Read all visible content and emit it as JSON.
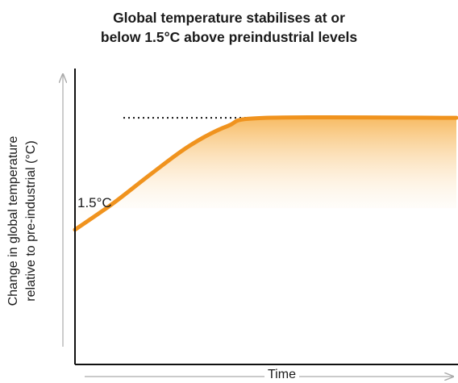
{
  "chart_data": {
    "type": "area",
    "title": [
      "Global temperature stabilises at or",
      "below 1.5°C above preindustrial levels"
    ],
    "xlabel": "Time",
    "ylabel": [
      "Change in global temperature",
      "relative to pre-industrial (°C)"
    ],
    "reference_line": {
      "label": "1.5°C",
      "value": 1.5,
      "style": "dotted"
    },
    "series": [
      {
        "x": [
          0,
          0.1,
          0.2,
          0.3,
          0.4,
          0.5,
          1.0
        ],
        "y": [
          0.82,
          0.98,
          1.16,
          1.33,
          1.45,
          1.5,
          1.5
        ]
      }
    ],
    "xlim": [
      0,
      1
    ],
    "ylim": [
      0,
      1.8
    ],
    "colors": {
      "line": "#f0931e",
      "fill": "#f7b75a",
      "axis": "#111111",
      "arrow": "#aaaaaa"
    }
  }
}
